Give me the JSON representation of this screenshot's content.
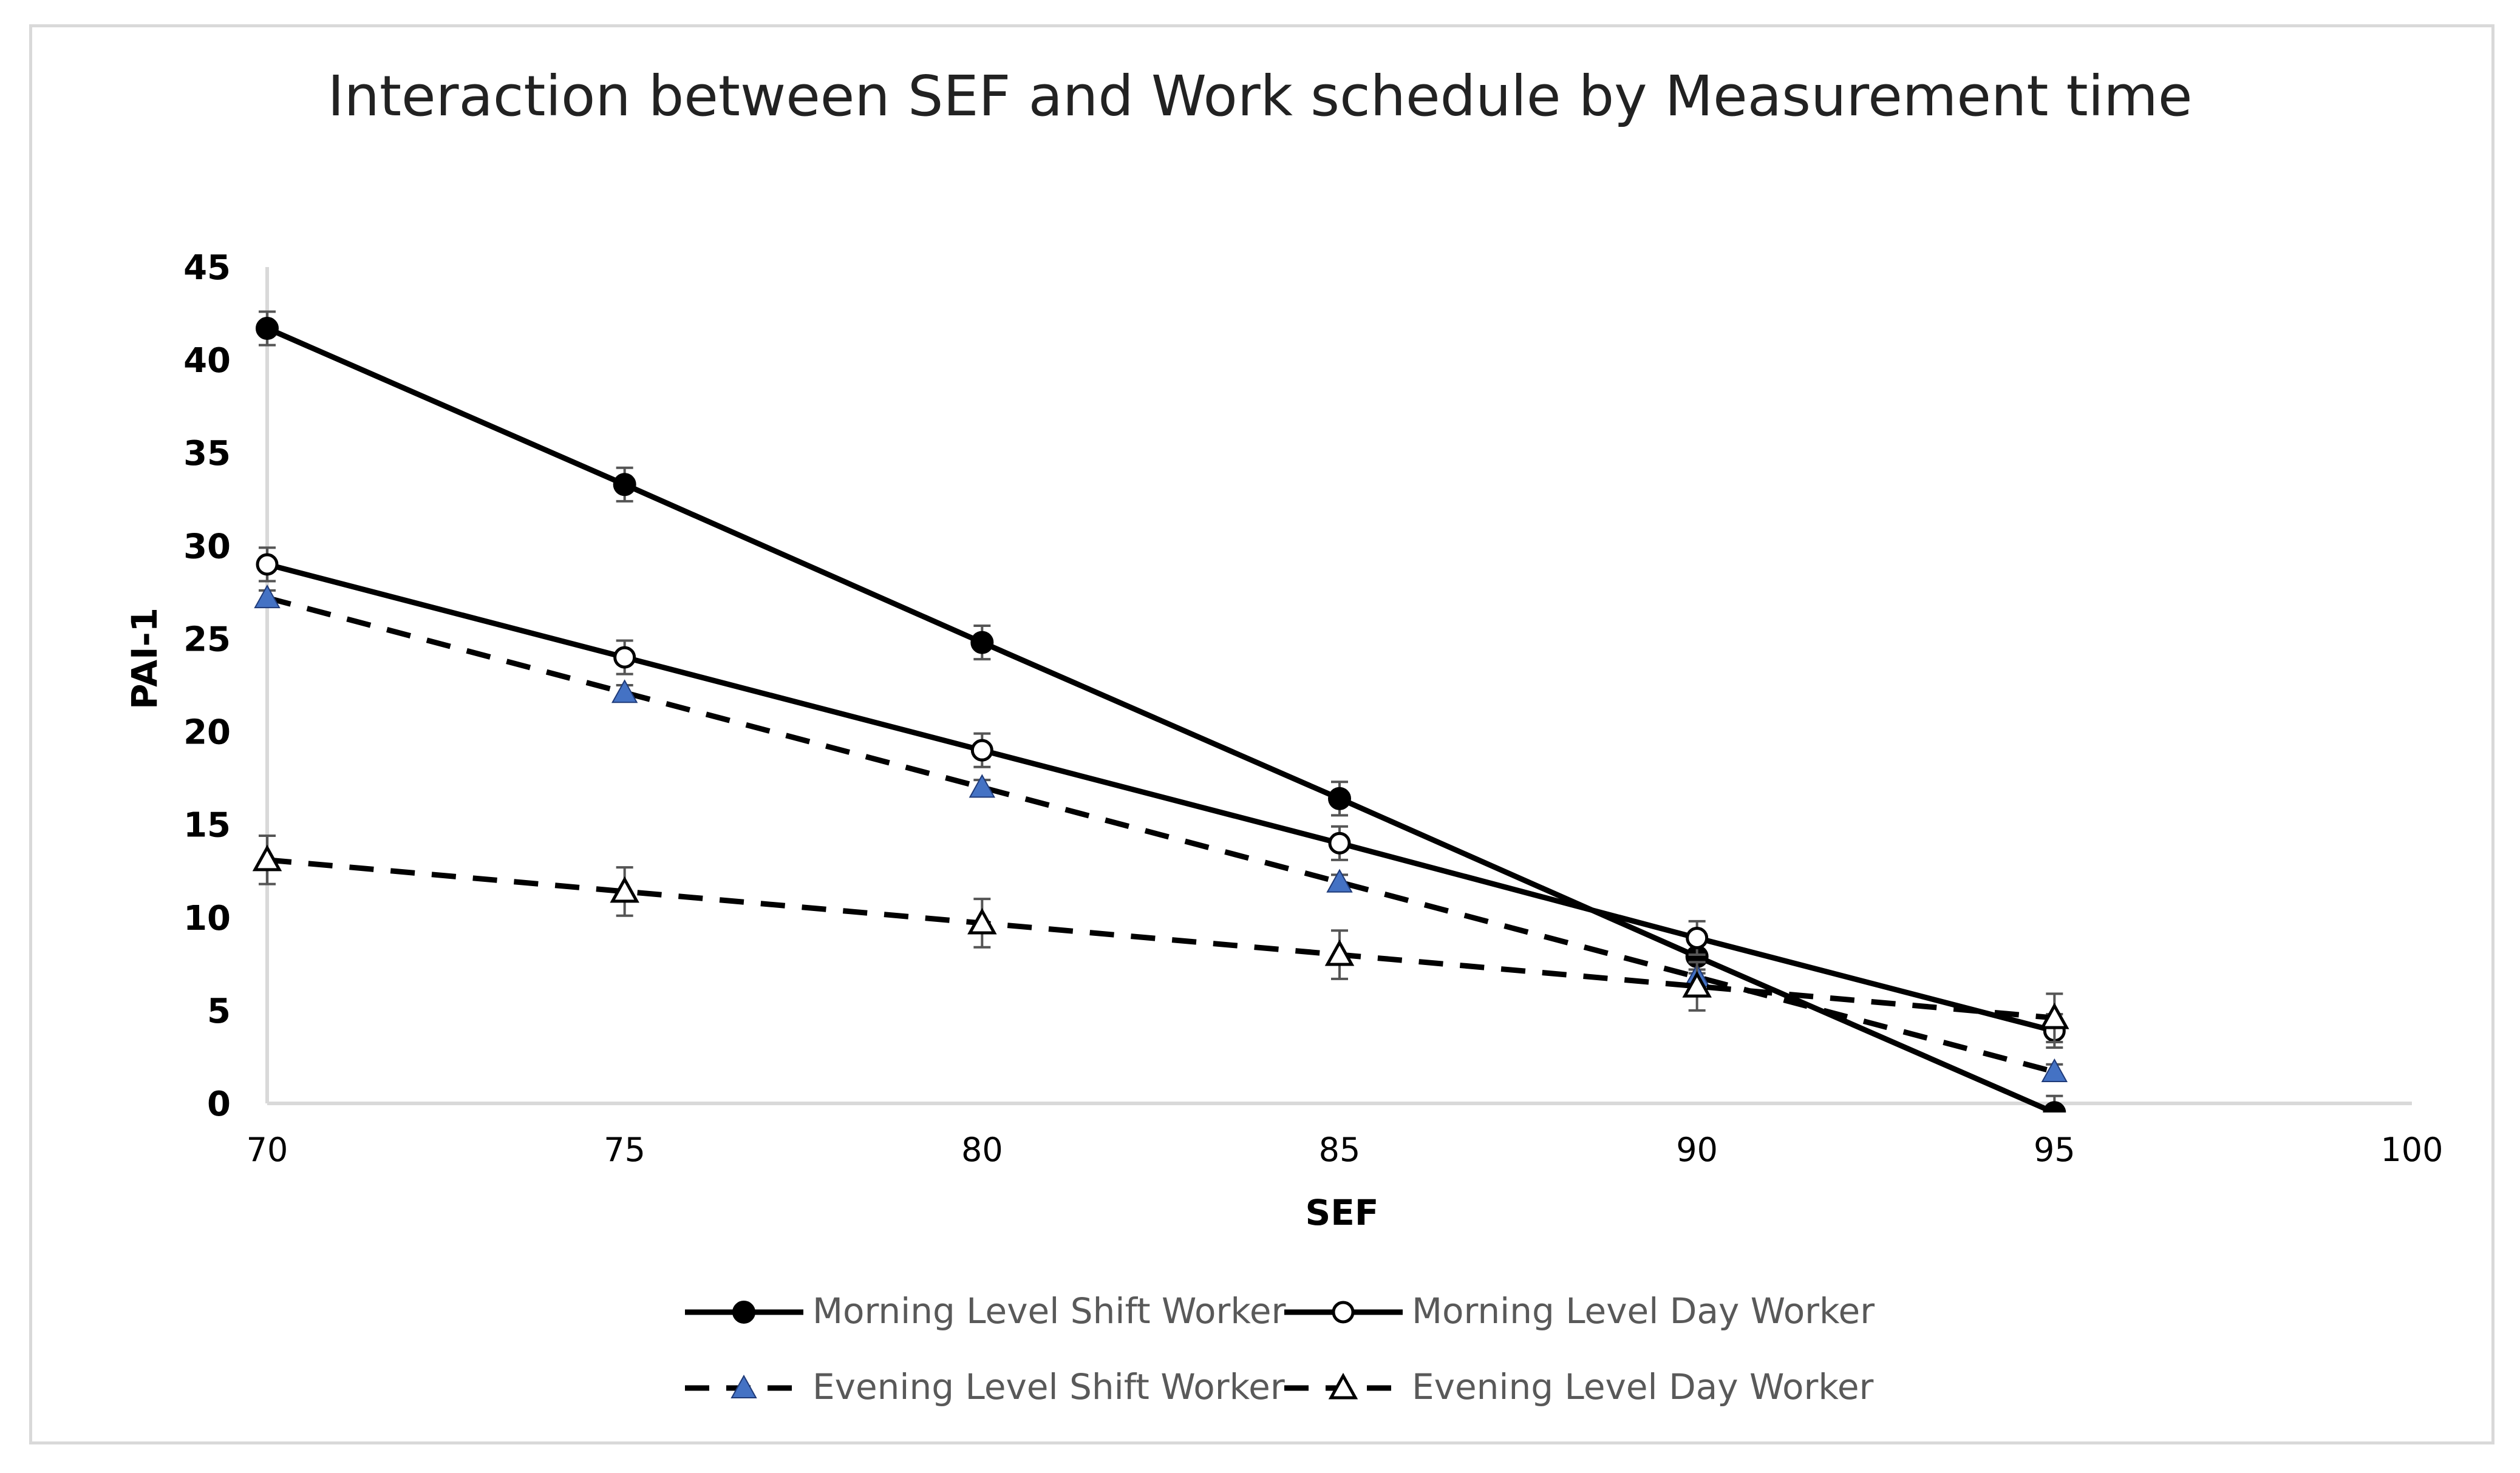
{
  "chart_data": {
    "type": "line",
    "title": "Interaction between SEF and  Work schedule by Measurement time",
    "xlabel": "SEF",
    "ylabel": "PAI-1",
    "xlim": [
      70,
      100
    ],
    "ylim": [
      0,
      45
    ],
    "x_ticks": [
      "70",
      "75",
      "80",
      "85",
      "90",
      "95",
      "100"
    ],
    "y_ticks": [
      "0",
      "5",
      "10",
      "15",
      "20",
      "25",
      "30",
      "35",
      "40",
      "45"
    ],
    "x": [
      70,
      75,
      80,
      85,
      90,
      95
    ],
    "legend_position": "bottom",
    "grid": false,
    "series": [
      {
        "name": "Morning Level Shift Worker",
        "values": [
          41.7,
          33.3,
          24.8,
          16.4,
          7.9,
          -0.5
        ],
        "error": [
          0.9,
          0.9,
          0.9,
          0.9,
          0.9,
          0.9
        ],
        "line_style": "solid",
        "marker": "filled-circle",
        "color": "#000000"
      },
      {
        "name": "Morning Level Day Worker",
        "values": [
          29.0,
          24.0,
          19.0,
          14.0,
          8.9,
          3.9
        ],
        "error": [
          0.9,
          0.9,
          0.9,
          0.9,
          0.9,
          0.9
        ],
        "line_style": "solid",
        "marker": "open-circle",
        "color": "#000000"
      },
      {
        "name": "Evening Level Shift Worker",
        "values": [
          27.2,
          22.1,
          17.0,
          11.9,
          6.8,
          1.7
        ],
        "error": [
          0.4,
          0.4,
          0.4,
          0.4,
          0.4,
          0.4
        ],
        "line_style": "dashed",
        "marker": "filled-triangle",
        "color": "#000000",
        "marker_color": "#4472c4"
      },
      {
        "name": "Evening Level Day Worker",
        "values": [
          13.1,
          11.4,
          9.7,
          8.0,
          6.3,
          4.6
        ],
        "error": [
          1.3,
          1.3,
          1.3,
          1.3,
          1.3,
          1.3
        ],
        "line_style": "dashed",
        "marker": "open-triangle",
        "color": "#000000"
      }
    ]
  }
}
